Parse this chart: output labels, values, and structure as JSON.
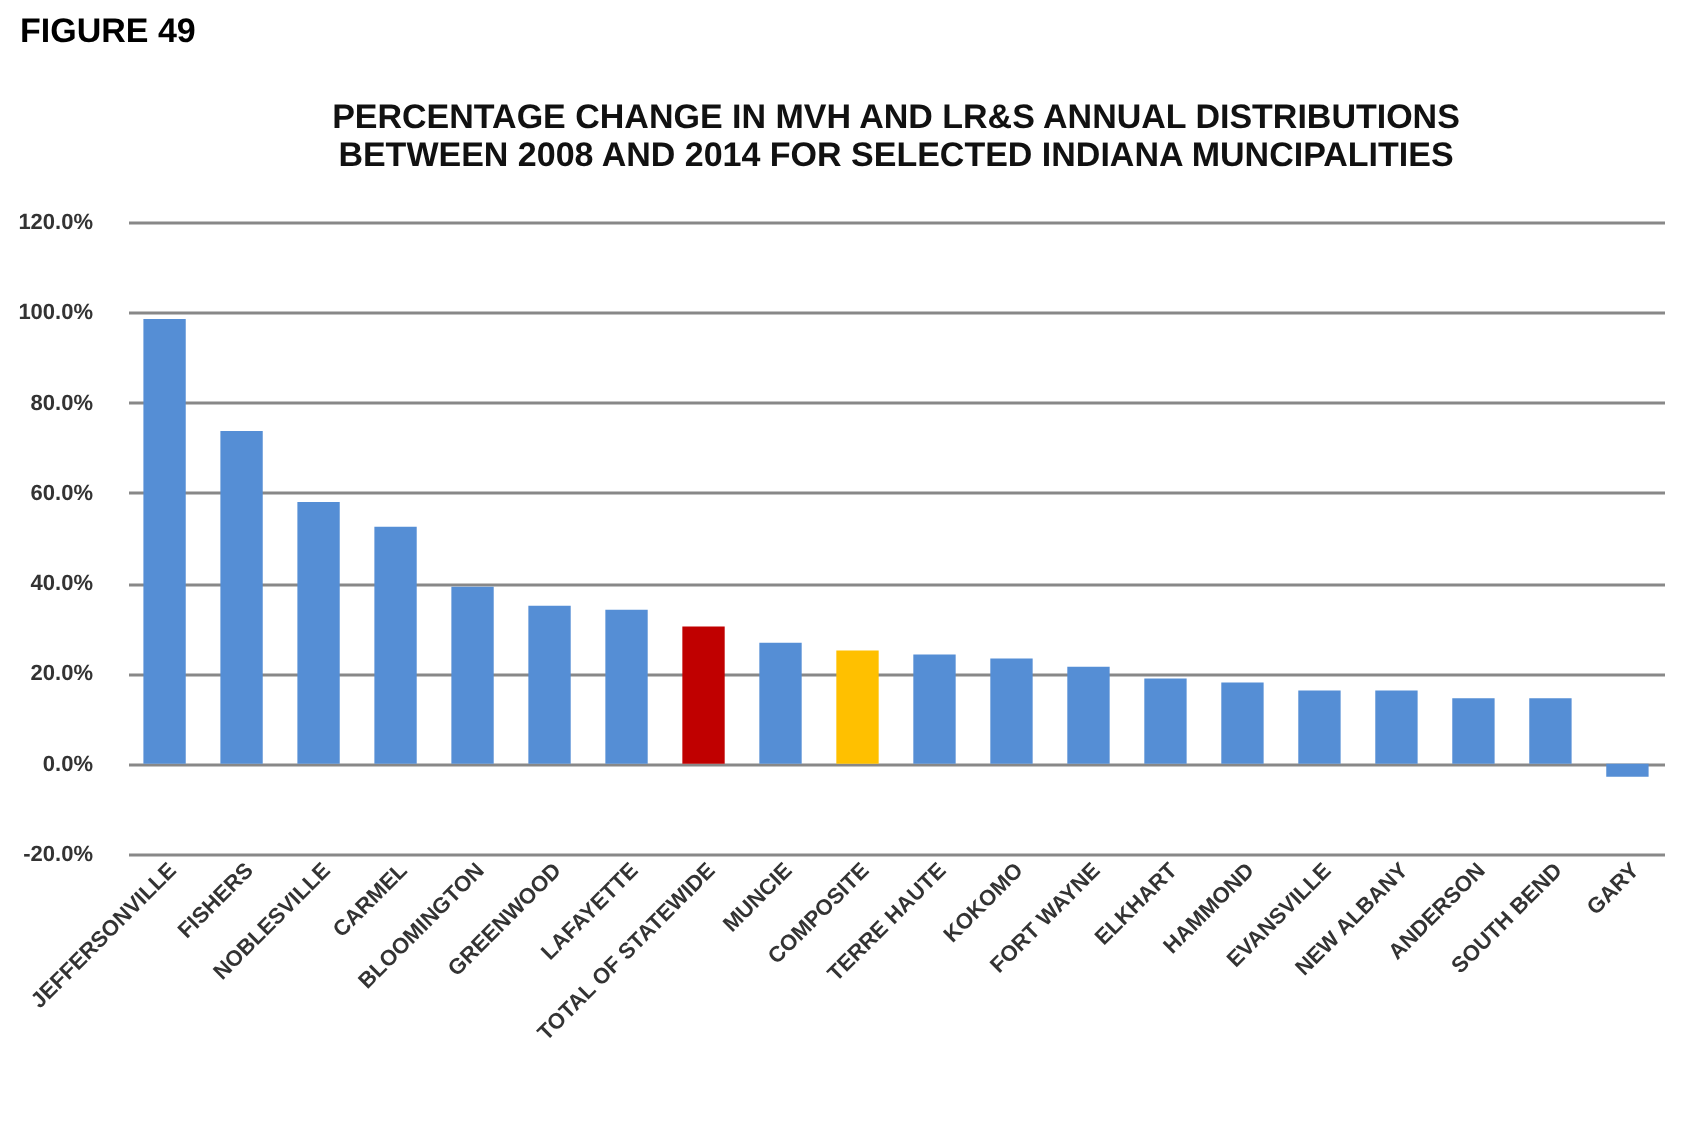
{
  "chart_data": {
    "type": "bar",
    "title": [
      "PERCENTAGE CHANGE IN MVH AND LR&S ANNUAL DISTRIBUTIONS",
      "BETWEEN 2008 AND 2014 FOR SELECTED INDIANA MUNCIPALITIES"
    ],
    "annotations": [
      "FIGURE 49"
    ],
    "categories": [
      "JEFFERSONVILLE",
      "FISHERS",
      "NOBLESVILLE",
      "CARMEL",
      "BLOOMINGTON",
      "GREENWOOD",
      "LAFAYETTE",
      "TOTAL OF STATEWIDE",
      "MUNCIE",
      "COMPOSITE",
      "TERRE HAUTE",
      "KOKOMO",
      "FORT WAYNE",
      "ELKHART",
      "HAMMOND",
      "EVANSVILLE",
      "NEW ALBANY",
      "ANDERSON",
      "SOUTH BEND",
      "GARY"
    ],
    "values": [
      98.5,
      73.7,
      58.0,
      52.5,
      39.2,
      35.0,
      34.1,
      30.4,
      26.8,
      25.1,
      24.2,
      23.3,
      21.5,
      18.9,
      18.0,
      16.2,
      16.2,
      14.5,
      14.5,
      -2.9
    ],
    "colors": [
      "#558ed5",
      "#558ed5",
      "#558ed5",
      "#558ed5",
      "#558ed5",
      "#558ed5",
      "#558ed5",
      "#c00000",
      "#558ed5",
      "#ffc000",
      "#558ed5",
      "#558ed5",
      "#558ed5",
      "#558ed5",
      "#558ed5",
      "#558ed5",
      "#558ed5",
      "#558ed5",
      "#558ed5",
      "#558ed5"
    ],
    "ylim": [
      -20,
      120
    ],
    "yticks": [
      {
        "value": -20,
        "label": "-20.0%"
      },
      {
        "value": 0,
        "label": "0.0%"
      },
      {
        "value": 20,
        "label": "20.0%"
      },
      {
        "value": 40,
        "label": "40.0%"
      },
      {
        "value": 60,
        "label": "60.0%"
      },
      {
        "value": 80,
        "label": "80.0%"
      },
      {
        "value": 100,
        "label": "100.0%"
      },
      {
        "value": 120,
        "label": "120.0%"
      }
    ],
    "grid": "y"
  }
}
